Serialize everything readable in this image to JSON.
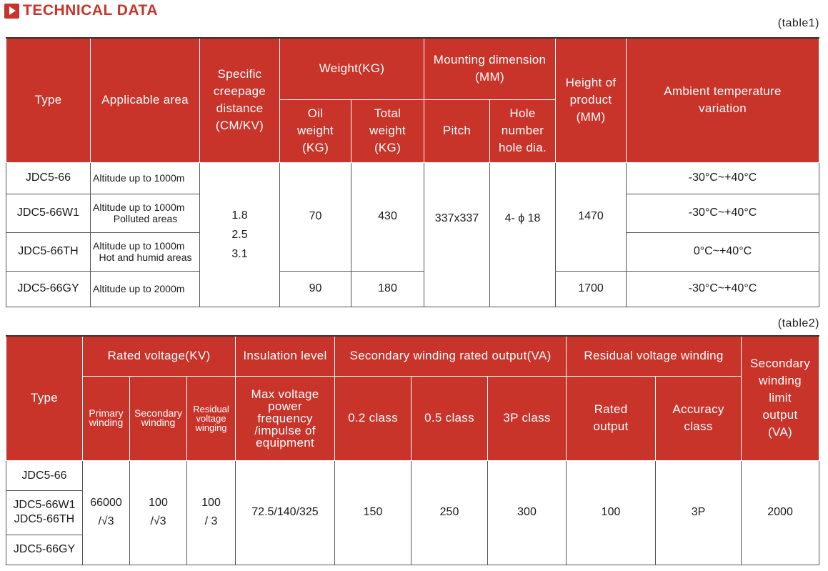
{
  "heading": {
    "icon": "play-icon",
    "title": "TECHNICAL DATA"
  },
  "table1": {
    "caption": "(table1)",
    "headers": {
      "type": "Type",
      "area": "Applicable area",
      "creepage": [
        "Specific",
        "creepage",
        "distance",
        "(CM/KV)"
      ],
      "weight": "Weight(KG)",
      "oil": [
        "Oil",
        "weight",
        "(KG)"
      ],
      "total": [
        "Total",
        "weight",
        "(KG)"
      ],
      "mounting": [
        "Mounting dimension",
        "(MM)"
      ],
      "pitch": "Pitch",
      "hole": [
        "Hole",
        "number",
        "hole dia."
      ],
      "height": [
        "Height of",
        "product",
        "(MM)"
      ],
      "ambient": [
        "Ambient temperature",
        "variation"
      ]
    },
    "rows": [
      {
        "type": "JDC5-66",
        "area": [
          "Altitude up to 1000m"
        ],
        "temp": "-30°C~+40°C"
      },
      {
        "type": "JDC5-66W1",
        "area": [
          "Altitude up to 1000m",
          "Polluted areas"
        ],
        "temp": "-30°C~+40°C"
      },
      {
        "type": "JDC5-66TH",
        "area": [
          "Altitude up to 1000m",
          "Hot and humid areas"
        ],
        "temp": "0°C~+40°C"
      },
      {
        "type": "JDC5-66GY",
        "area": [
          "Altitude up to 2000m"
        ],
        "temp": "-30°C~+40°C"
      }
    ],
    "creepage_values": [
      "1.8",
      "2.5",
      "3.1"
    ],
    "group1": {
      "oil": "70",
      "total": "430",
      "height": "1470"
    },
    "group2": {
      "oil": "90",
      "total": "180",
      "height": "1700"
    },
    "pitch": "337x337",
    "hole": "4- ϕ 18"
  },
  "table2": {
    "caption": "(table2)",
    "headers": {
      "type": "Type",
      "rated": "Rated voltage(KV)",
      "primary": [
        "Primary",
        "winding"
      ],
      "secondary": [
        "Secondary",
        "winding"
      ],
      "residual": [
        "Residual",
        "voltage",
        "winging"
      ],
      "insulation": "Insulation level",
      "insulation_sub": [
        "Max voltage",
        "power",
        "frequency",
        "/impulse of",
        "equipment"
      ],
      "secondary_output": "Secondary winding rated output(VA)",
      "c02": "0.2 class",
      "c05": "0.5 class",
      "c3p": "3P class",
      "residual_winding": "Residual voltage winding",
      "rated_output": [
        "Rated",
        "output"
      ],
      "accuracy": [
        "Accuracy",
        "class"
      ],
      "limit": [
        "Secondary",
        "winding",
        "limit",
        "output",
        "(VA)"
      ]
    },
    "types": [
      "JDC5-66",
      "JDC5-66W1",
      "JDC5-66TH",
      "JDC5-66GY"
    ],
    "primary": [
      "66000",
      "/√3"
    ],
    "secondary": [
      "100",
      "/√3"
    ],
    "residual": [
      "100",
      "/ 3"
    ],
    "insulation": "72.5/140/325",
    "c02": "150",
    "c05": "250",
    "c3p": "300",
    "rated_output": "100",
    "accuracy": "3P",
    "limit": "2000"
  }
}
